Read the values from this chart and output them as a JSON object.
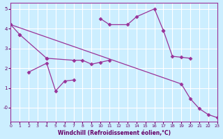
{
  "xlabel": "Windchill (Refroidissement éolien,°C)",
  "background_color": "#cceeff",
  "line_color": "#993399",
  "grid_color": "#ffffff",
  "xlim": [
    0,
    23
  ],
  "ylim": [
    -0.7,
    5.3
  ],
  "yticks": [
    0,
    1,
    2,
    3,
    4,
    5
  ],
  "ytick_labels": [
    "-0",
    "1",
    "2",
    "3",
    "4",
    "5"
  ],
  "xticks": [
    0,
    1,
    2,
    3,
    4,
    5,
    6,
    7,
    8,
    9,
    10,
    11,
    12,
    13,
    14,
    15,
    16,
    17,
    18,
    19,
    20,
    21,
    22,
    23
  ],
  "segments": [
    {
      "x": [
        0,
        1
      ],
      "y": [
        4.2,
        3.7
      ]
    },
    {
      "x": [
        1,
        4
      ],
      "y": [
        3.7,
        2.5
      ]
    },
    {
      "x": [
        2,
        4,
        5,
        6,
        7
      ],
      "y": [
        1.8,
        2.25,
        0.85,
        1.35,
        1.4
      ]
    },
    {
      "x": [
        4,
        7,
        8,
        9,
        10,
        11
      ],
      "y": [
        2.5,
        2.4,
        2.4,
        2.2,
        2.3,
        2.4
      ]
    },
    {
      "x": [
        10,
        11,
        13,
        14,
        16,
        17
      ],
      "y": [
        4.5,
        4.2,
        4.2,
        4.6,
        5.0,
        3.9
      ]
    },
    {
      "x": [
        17,
        18,
        19,
        20
      ],
      "y": [
        3.9,
        2.6,
        2.55,
        2.5
      ]
    },
    {
      "x": [
        0,
        19,
        20,
        21,
        22,
        23
      ],
      "y": [
        4.2,
        1.2,
        0.45,
        -0.05,
        -0.35,
        -0.5
      ]
    }
  ]
}
